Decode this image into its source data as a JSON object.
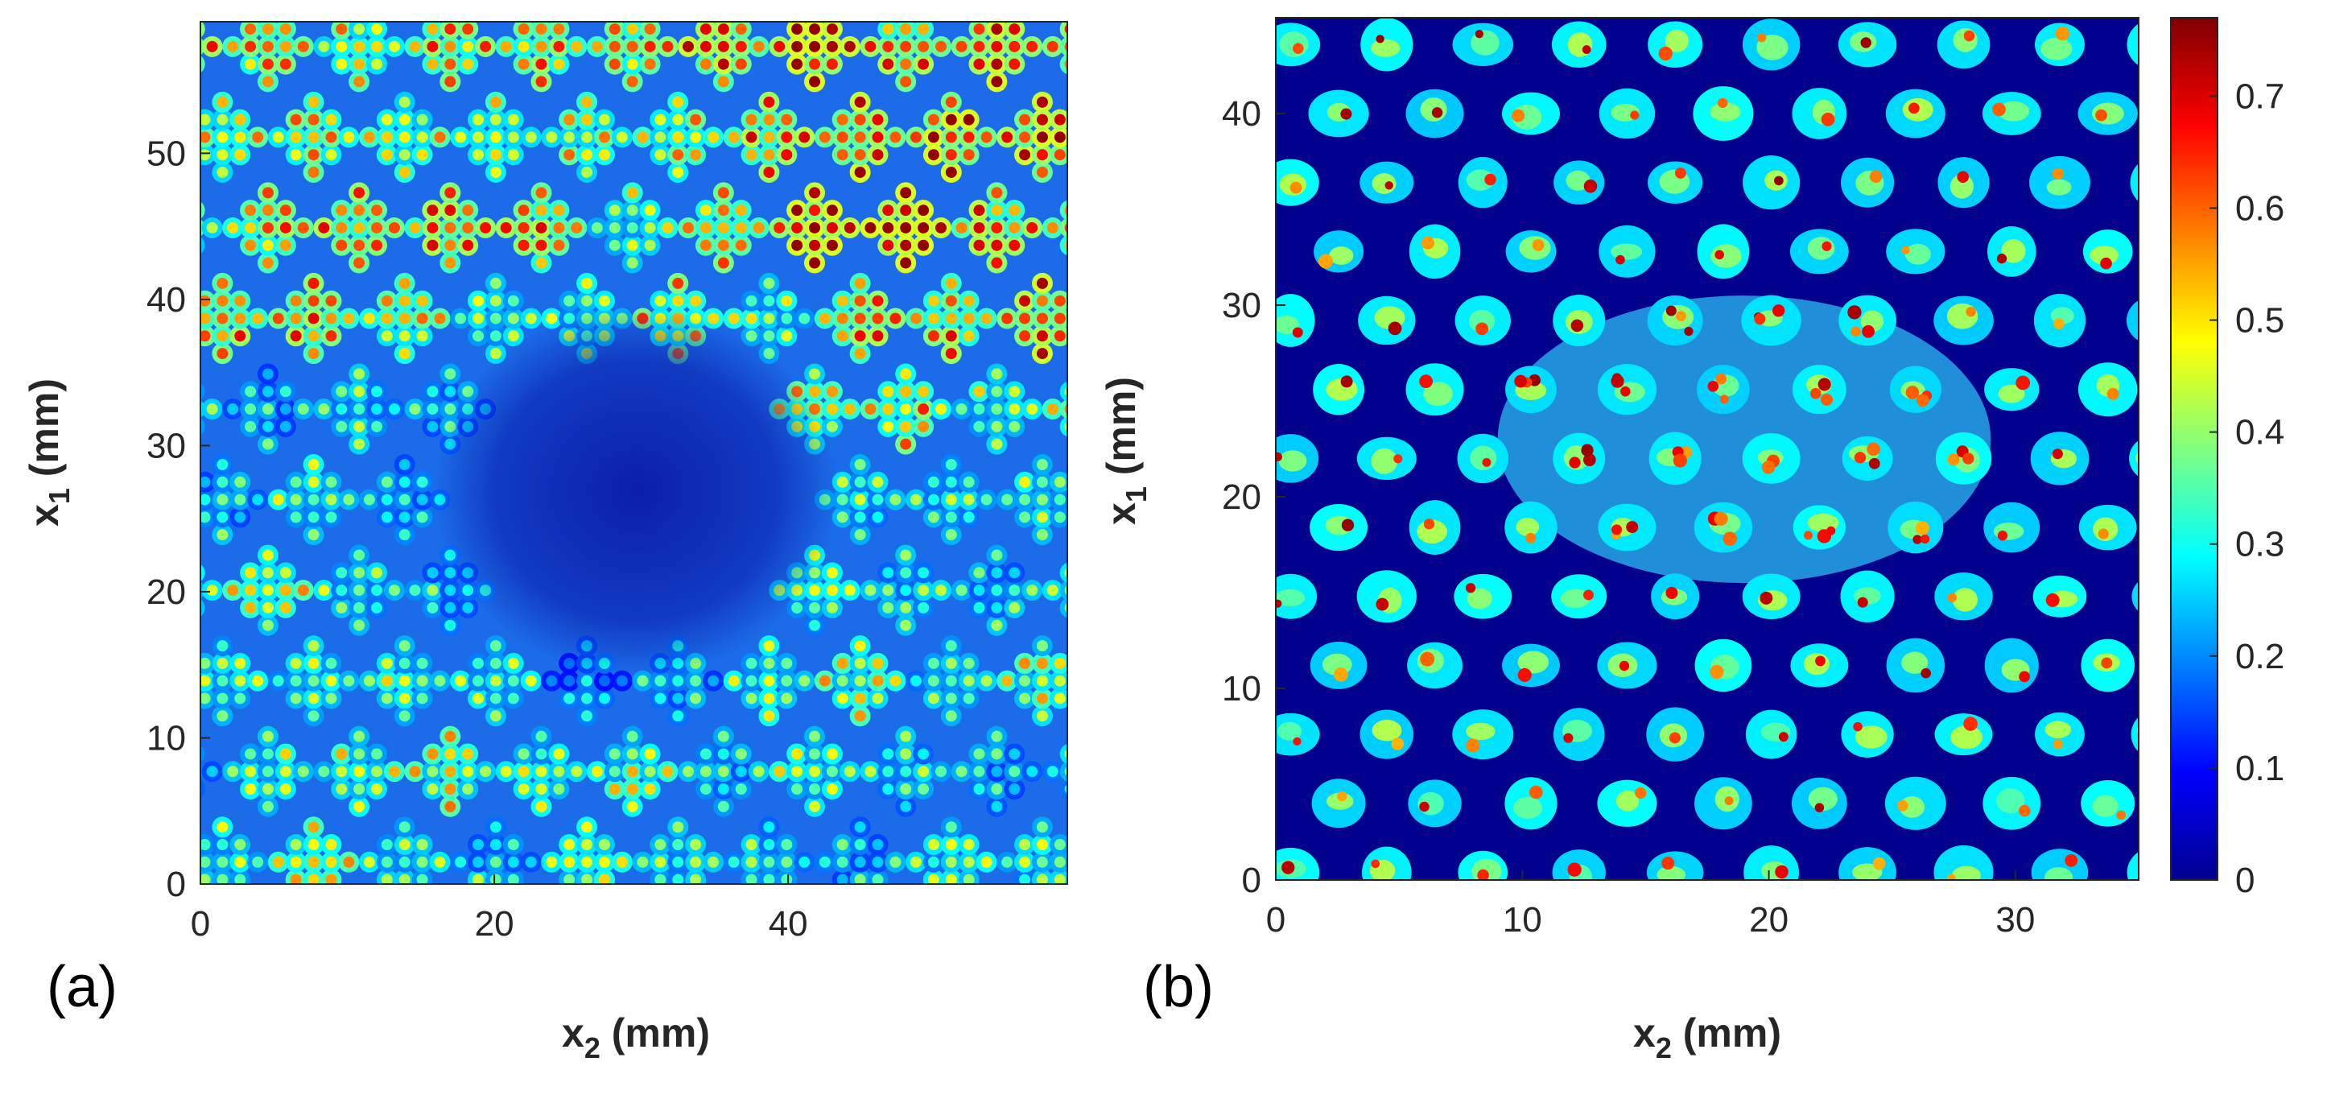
{
  "chart_data": [
    {
      "type": "heatmap",
      "panel": "(a)",
      "xlabel": "x",
      "xlabel_sub": "2",
      "xlabel_unit": " (mm)",
      "ylabel": "x",
      "ylabel_sub": "1",
      "ylabel_unit": " (mm)",
      "xlim": [
        0,
        59
      ],
      "ylim": [
        0,
        59
      ],
      "xticks": [
        0,
        20,
        40
      ],
      "yticks": [
        0,
        10,
        20,
        30,
        40,
        50
      ],
      "pattern": "diamond clusters of circular peaks on a regular lattice; low-amplitude damaged region centred near x2=30 mm, x1=27 mm"
    },
    {
      "type": "heatmap",
      "panel": "(b)",
      "xlabel": "x",
      "xlabel_sub": "2",
      "xlabel_unit": " (mm)",
      "ylabel": "x",
      "ylabel_sub": "1",
      "ylabel_unit": " (mm)",
      "xlim": [
        0,
        35
      ],
      "ylim": [
        0,
        45
      ],
      "xticks": [
        0,
        10,
        20,
        30
      ],
      "yticks": [
        0,
        10,
        20,
        30,
        40
      ],
      "pattern": "periodic islands on a dark background; elevated irregular region centred near x2=20 mm, x1=23 mm"
    }
  ],
  "colorbar": {
    "colormap": "jet",
    "range": [
      0,
      0.77
    ],
    "ticks": [
      "0",
      "0.1",
      "0.2",
      "0.3",
      "0.4",
      "0.5",
      "0.6",
      "0.7"
    ]
  }
}
